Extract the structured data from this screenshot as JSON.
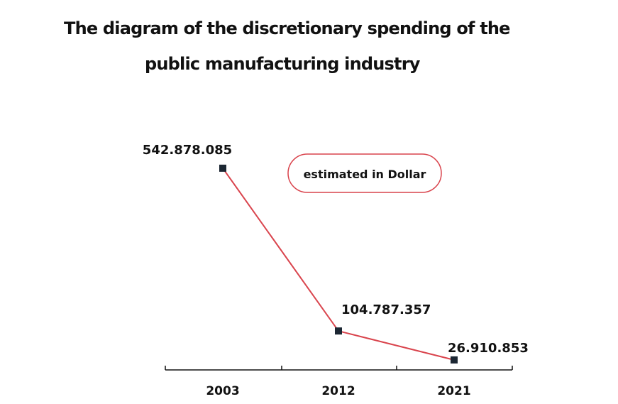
{
  "chart_data": {
    "type": "line",
    "title_line1": "The diagram of the discretionary spending of the",
    "title_line2": "public manufacturing industry",
    "unit_note": "estimated in Dollar",
    "categories": [
      "2003",
      "2012",
      "2021"
    ],
    "values": [
      542878085,
      104787357,
      26910853
    ],
    "value_labels": [
      "542.878.085",
      "104.787.357",
      "26.910.853"
    ],
    "ylim": [
      0,
      600000000
    ],
    "grid": false,
    "colors": {
      "line": "#d9434c",
      "marker": "#1c2733",
      "axis": "#111111",
      "unit_border": "#d9434c"
    }
  }
}
